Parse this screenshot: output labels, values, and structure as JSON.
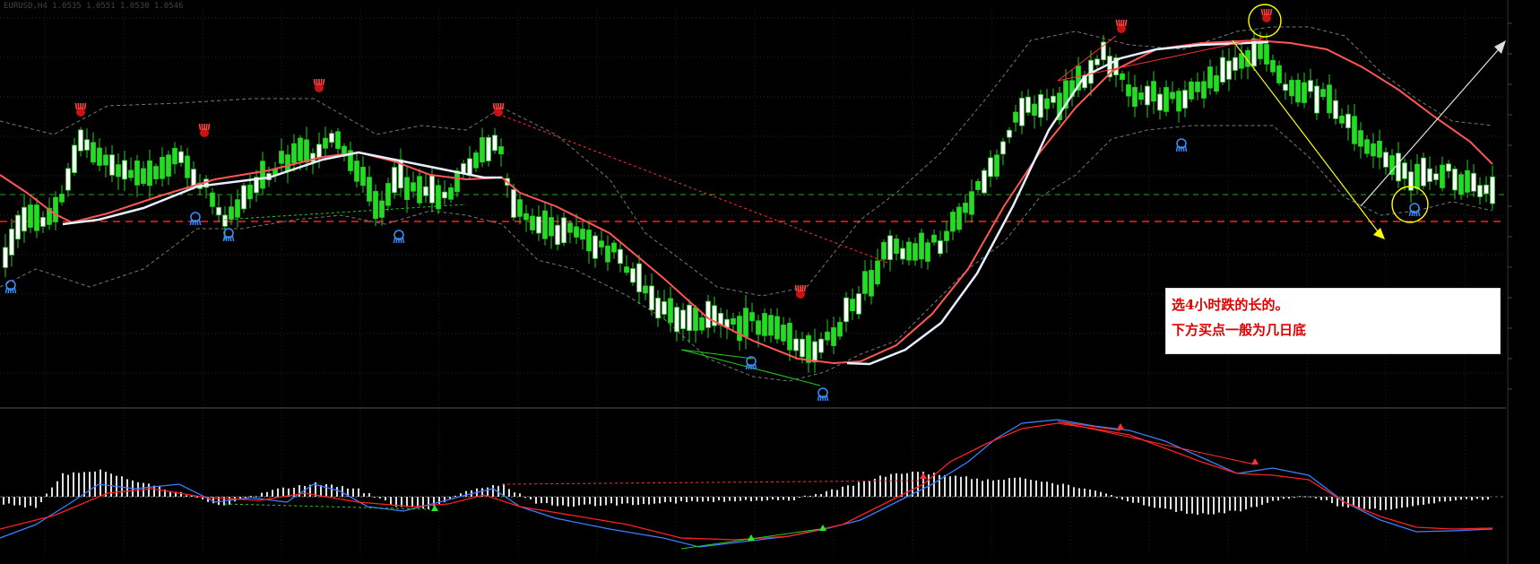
{
  "chart_data": [
    {
      "type": "candlestick",
      "title": "",
      "overlays": [
        "moving average (white)",
        "moving average (red)",
        "bollinger bands (dashed grey)"
      ],
      "signals": [
        "red hand fractal markers above highs",
        "blue hand markers below lows"
      ],
      "price_tick_labels": [
        "",
        "",
        "",
        "",
        "",
        "",
        "",
        "",
        "",
        "",
        "",
        "",
        ""
      ],
      "colors": {
        "up": "#22dd22",
        "down": "#ffffff",
        "ma_fast": "#e6f0ff",
        "ma_slow": "#ff5555",
        "bands": "#777777",
        "arrow": "#ffff00",
        "arrow2": "#dddddd"
      }
    },
    {
      "type": "macd",
      "series": [
        {
          "name": "",
          "color": "#3a7fff"
        },
        {
          "name": "",
          "color": "#ff2020"
        }
      ],
      "histogram_color": "#e0e0e0"
    }
  ],
  "annotation": {
    "line1": "选4小时跌的长的。",
    "line2": "下方买点一般为几日底"
  },
  "top_left_text": "EURUSD,H4  1.0535 1.0551 1.0530 1.0546"
}
